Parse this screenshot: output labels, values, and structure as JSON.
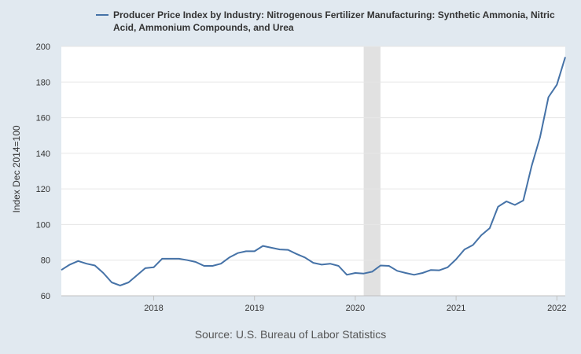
{
  "source_text": "Source: U.S. Bureau of Labor Statistics",
  "colors": {
    "background": "#e1e9f0",
    "plot": "#ffffff",
    "line": "#4572a7",
    "recession": "#e1e1e1",
    "grid": "#e6e6e6"
  },
  "chart_data": {
    "type": "line",
    "legend": "Producer Price Index by Industry: Nitrogenous Fertilizer Manufacturing: Synthetic Ammonia, Nitric Acid, Ammonium Compounds, and Urea",
    "legend_position": "top",
    "ylabel": "Index Dec 2014=100",
    "xlabel": "",
    "ylim": [
      60,
      200
    ],
    "yticks": [
      60,
      80,
      100,
      120,
      140,
      160,
      180,
      200
    ],
    "xlim": [
      "2017-02",
      "2022-02"
    ],
    "xticks": [
      {
        "label": "2018",
        "date": "2018-01"
      },
      {
        "label": "2019",
        "date": "2019-01"
      },
      {
        "label": "2020",
        "date": "2020-01"
      },
      {
        "label": "2021",
        "date": "2021-01"
      },
      {
        "label": "2022",
        "date": "2022-01"
      }
    ],
    "grid": "horizontal",
    "shaded_regions": [
      {
        "start": "2020-02",
        "end": "2020-04",
        "label": "recession"
      }
    ],
    "series": [
      {
        "name": "Producer Price Index by Industry: Nitrogenous Fertilizer Manufacturing: Synthetic Ammonia, Nitric Acid, Ammonium Compounds, and Urea",
        "x": [
          "2017-02",
          "2017-03",
          "2017-04",
          "2017-05",
          "2017-06",
          "2017-07",
          "2017-08",
          "2017-09",
          "2017-10",
          "2017-11",
          "2017-12",
          "2018-01",
          "2018-02",
          "2018-03",
          "2018-04",
          "2018-05",
          "2018-06",
          "2018-07",
          "2018-08",
          "2018-09",
          "2018-10",
          "2018-11",
          "2018-12",
          "2019-01",
          "2019-02",
          "2019-03",
          "2019-04",
          "2019-05",
          "2019-06",
          "2019-07",
          "2019-08",
          "2019-09",
          "2019-10",
          "2019-11",
          "2019-12",
          "2020-01",
          "2020-02",
          "2020-03",
          "2020-04",
          "2020-05",
          "2020-06",
          "2020-07",
          "2020-08",
          "2020-09",
          "2020-10",
          "2020-11",
          "2020-12",
          "2021-01",
          "2021-02",
          "2021-03",
          "2021-04",
          "2021-05",
          "2021-06",
          "2021-07",
          "2021-08",
          "2021-09",
          "2021-10",
          "2021-11",
          "2021-12",
          "2022-01",
          "2022-02"
        ],
        "values": [
          74.5,
          77.5,
          79.5,
          78.0,
          77.0,
          72.8,
          67.5,
          65.8,
          67.5,
          71.5,
          75.5,
          76.0,
          80.8,
          80.8,
          80.8,
          80.0,
          79.0,
          76.8,
          76.8,
          78.0,
          81.5,
          84.0,
          85.0,
          85.0,
          88.0,
          87.0,
          86.0,
          85.8,
          83.5,
          81.5,
          78.5,
          77.5,
          78.0,
          76.8,
          71.8,
          72.8,
          72.5,
          73.5,
          77.0,
          76.8,
          74.0,
          72.8,
          71.8,
          72.8,
          74.5,
          74.3,
          76.0,
          80.5,
          86.0,
          88.5,
          94.0,
          98.0,
          110.0,
          113.0,
          111.0,
          113.5,
          133.0,
          149.0,
          171.5,
          178.5,
          194.0
        ]
      }
    ]
  }
}
